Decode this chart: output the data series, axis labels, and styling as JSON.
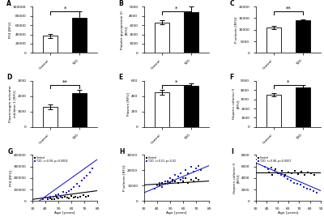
{
  "panel_labels": [
    "A",
    "B",
    "C",
    "D",
    "E",
    "F",
    "G",
    "H",
    "I"
  ],
  "bar_panels": {
    "A": {
      "ylabel": "PF4 [RFU]",
      "ylabel2": "",
      "control_mean": 37000,
      "control_err": 4000,
      "t2d_mean": 75000,
      "t2d_err": 15000,
      "ylim": [
        0,
        100000
      ],
      "yticks": [
        0,
        20000,
        40000,
        60000,
        80000,
        100000
      ],
      "sig": "*"
    },
    "B": {
      "ylabel": "Platelet glycoprotein VI",
      "ylabel2": "[RFU]",
      "control_mean": 3300,
      "control_err": 200,
      "t2d_mean": 4400,
      "t2d_err": 600,
      "ylim": [
        0,
        5000
      ],
      "yticks": [
        0,
        1000,
        2000,
        3000,
        4000,
        5000
      ],
      "sig": "*"
    },
    "C": {
      "ylabel": "P-selectin [RFU]",
      "ylabel2": "",
      "control_mean": 11000,
      "control_err": 800,
      "t2d_mean": 14000,
      "t2d_err": 600,
      "ylim": [
        0,
        20000
      ],
      "yticks": [
        0,
        5000,
        10000,
        15000,
        20000
      ],
      "sig": "**"
    },
    "D": {
      "ylabel": "Plasminogen activator",
      "ylabel2": "inhibitor 1 [RFU]",
      "control_mean": 1300,
      "control_err": 150,
      "t2d_mean": 2200,
      "t2d_err": 200,
      "ylim": [
        0,
        3000
      ],
      "yticks": [
        0,
        1000,
        2000,
        3000
      ],
      "sig": "**"
    },
    "E": {
      "ylabel": "Plasmin [RFU]",
      "ylabel2": "",
      "control_mean": 450,
      "control_err": 30,
      "t2d_mean": 530,
      "t2d_err": 40,
      "ylim": [
        0,
        600
      ],
      "yticks": [
        0,
        200,
        400,
        600
      ],
      "sig": "*"
    },
    "F": {
      "ylabel": "Heparin cofactor II",
      "ylabel2": "[RFU]",
      "control_mean": 3500,
      "control_err": 200,
      "t2d_mean": 4300,
      "t2d_err": 200,
      "ylim": [
        0,
        5000
      ],
      "yticks": [
        0,
        1000,
        2000,
        3000,
        4000,
        5000
      ],
      "sig": "*"
    }
  },
  "scatter_panels": {
    "G": {
      "ylabel": "PF4 [RFU]",
      "xlabel": "Age [years]",
      "ylim": [
        0,
        400000
      ],
      "yticks": [
        0,
        100000,
        200000,
        300000,
        400000
      ],
      "ytick_labels": [
        "0",
        "100000",
        "200000",
        "300000",
        "400000"
      ],
      "xlim": [
        30,
        80
      ],
      "xticks": [
        30,
        40,
        50,
        60,
        70,
        80
      ],
      "legend1": "Control",
      "legend2": "T2D  r=0.58, p=0.0004",
      "control_x": [
        42,
        44,
        45,
        47,
        49,
        50,
        52,
        53,
        55,
        57,
        58,
        60,
        62,
        63,
        65,
        67,
        69,
        71,
        73
      ],
      "control_y": [
        15000,
        25000,
        20000,
        18000,
        30000,
        22000,
        35000,
        28000,
        40000,
        32000,
        25000,
        45000,
        30000,
        35000,
        28000,
        40000,
        50000,
        38000,
        45000
      ],
      "t2d_x": [
        38,
        40,
        42,
        44,
        46,
        48,
        50,
        52,
        54,
        56,
        58,
        60,
        62,
        64,
        66,
        68,
        70,
        72,
        74,
        76
      ],
      "t2d_y": [
        20000,
        30000,
        25000,
        40000,
        35000,
        50000,
        60000,
        45000,
        80000,
        70000,
        90000,
        100000,
        120000,
        150000,
        130000,
        180000,
        200000,
        220000,
        250000,
        280000
      ],
      "control_slope": 1500,
      "control_intercept": -30000,
      "t2d_slope": 8000,
      "t2d_intercept": -280000
    },
    "H": {
      "ylabel": "P-selectin [RFU]",
      "xlabel": "Age [years]",
      "ylim": [
        0,
        30000
      ],
      "yticks": [
        0,
        10000,
        20000,
        30000
      ],
      "ytick_labels": [
        "0",
        "10000",
        "20000",
        "30000"
      ],
      "xlim": [
        30,
        80
      ],
      "xticks": [
        30,
        40,
        50,
        60,
        70,
        80
      ],
      "legend1": "Control",
      "legend2": "T2D  r=0.51, p=0.02",
      "control_x": [
        42,
        44,
        46,
        48,
        50,
        52,
        54,
        56,
        58,
        60,
        62,
        64,
        66,
        68,
        70,
        72
      ],
      "control_y": [
        10000,
        12000,
        11000,
        13000,
        12000,
        14000,
        13000,
        12000,
        14000,
        13000,
        15000,
        12000,
        14000,
        13000,
        15000,
        14000
      ],
      "t2d_x": [
        38,
        40,
        42,
        44,
        46,
        48,
        50,
        52,
        54,
        56,
        58,
        60,
        62,
        64,
        66,
        68,
        70,
        72,
        74
      ],
      "t2d_y": [
        8000,
        10000,
        12000,
        9000,
        13000,
        11000,
        15000,
        13000,
        17000,
        16000,
        18000,
        15000,
        20000,
        18000,
        22000,
        19000,
        21000,
        23000,
        20000
      ],
      "control_slope": 50,
      "control_intercept": 9000,
      "t2d_slope": 350,
      "t2d_intercept": -5000
    },
    "I": {
      "ylabel": "Heparin cofactor II",
      "ylabel2": "[RFU]",
      "xlabel": "Age [years]",
      "ylim": [
        0,
        8000
      ],
      "yticks": [
        0,
        2000,
        4000,
        6000,
        8000
      ],
      "ytick_labels": [
        "0",
        "2000",
        "4000",
        "6000",
        "8000"
      ],
      "xlim": [
        30,
        90
      ],
      "xticks": [
        30,
        40,
        50,
        60,
        70,
        80,
        90
      ],
      "legend1": "Control",
      "legend2": "T2D  r=0.98, p=0.0007",
      "control_x": [
        42,
        45,
        48,
        51,
        54,
        57,
        60,
        63,
        66,
        69,
        72,
        75,
        78,
        81,
        84
      ],
      "control_y": [
        5000,
        4500,
        5500,
        4800,
        5200,
        4600,
        5000,
        4800,
        5300,
        4700,
        5100,
        4500,
        5000,
        4800,
        4600
      ],
      "t2d_x": [
        38,
        41,
        44,
        47,
        50,
        53,
        56,
        59,
        62,
        65,
        68,
        71,
        74,
        77,
        80,
        83,
        86
      ],
      "t2d_y": [
        6000,
        5500,
        5800,
        5200,
        4800,
        4500,
        4200,
        3800,
        3500,
        3200,
        3000,
        2800,
        2500,
        2200,
        2000,
        1800,
        1500
      ],
      "control_slope": 0,
      "control_intercept": 5000,
      "t2d_slope": -80,
      "t2d_intercept": 9000
    }
  },
  "bar_color_control": "white",
  "bar_color_t2d": "black",
  "bar_edgecolor": "black",
  "control_scatter_color": "black",
  "t2d_scatter_color": "#2222cc",
  "control_line_color": "black",
  "t2d_line_color": "#2222cc",
  "xtick_labels_bar": [
    "Control",
    "T2D"
  ],
  "background_color": "white"
}
